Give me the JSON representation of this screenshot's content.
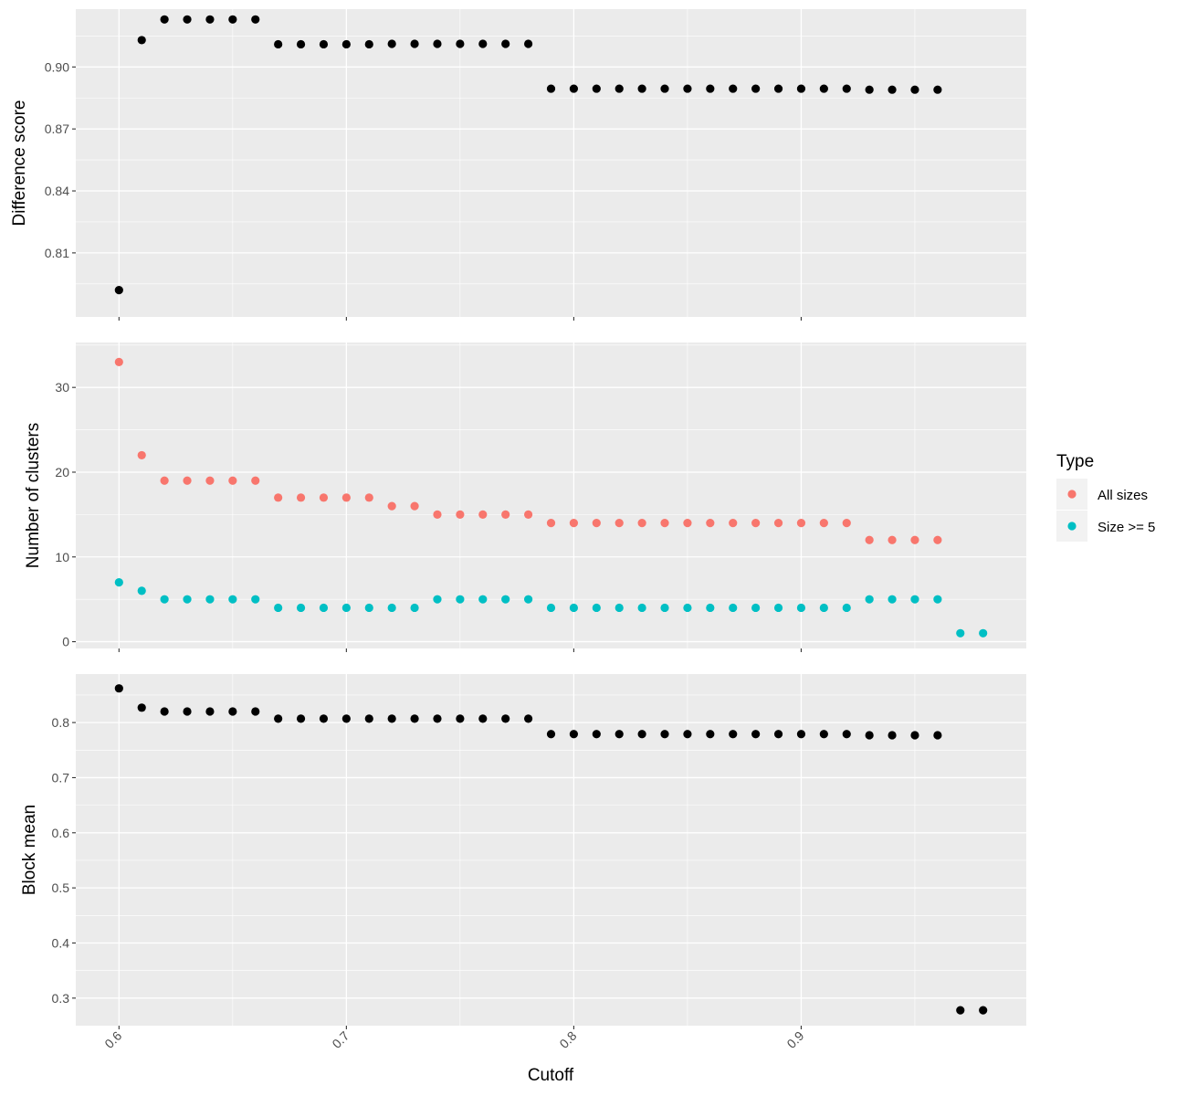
{
  "chart_data": {
    "type": "scatter",
    "x_label": "Cutoff",
    "x_ticks": [
      0.6,
      0.7,
      0.8,
      0.9
    ],
    "x_tick_labels": [
      "0.6",
      "0.7",
      "0.8",
      "0.9"
    ],
    "xlim": [
      0.581,
      0.999
    ],
    "grid": true,
    "panels": [
      {
        "ylabel": "Difference score",
        "ylim": [
          0.779,
          0.928
        ],
        "yticks": [
          0.81,
          0.84,
          0.87,
          0.9
        ],
        "ytick_labels": [
          "0.81",
          "0.84",
          "0.87",
          "0.90"
        ],
        "series": [
          {
            "color": "#000000",
            "x": [
              0.6,
              0.61,
              0.62,
              0.63,
              0.64,
              0.65,
              0.66,
              0.67,
              0.68,
              0.69,
              0.7,
              0.71,
              0.72,
              0.73,
              0.74,
              0.75,
              0.76,
              0.77,
              0.78,
              0.79,
              0.8,
              0.81,
              0.82,
              0.83,
              0.84,
              0.85,
              0.86,
              0.87,
              0.88,
              0.89,
              0.9,
              0.91,
              0.92,
              0.93,
              0.94,
              0.95,
              0.96
            ],
            "y": [
              0.792,
              0.913,
              0.923,
              0.923,
              0.923,
              0.923,
              0.923,
              0.911,
              0.911,
              0.911,
              0.911,
              0.911,
              0.9112,
              0.9112,
              0.9112,
              0.9112,
              0.9112,
              0.9112,
              0.9112,
              0.8895,
              0.8895,
              0.8895,
              0.8895,
              0.8895,
              0.8895,
              0.8895,
              0.8895,
              0.8895,
              0.8895,
              0.8895,
              0.8895,
              0.8895,
              0.8895,
              0.889,
              0.889,
              0.889,
              0.889
            ]
          }
        ]
      },
      {
        "ylabel": "Number of clusters",
        "ylim": [
          -0.8,
          35.3
        ],
        "yticks": [
          0,
          10,
          20,
          30
        ],
        "ytick_labels": [
          "0",
          "10",
          "20",
          "30"
        ],
        "series": [
          {
            "name": "All sizes",
            "color": "#F8766D",
            "x": [
              0.6,
              0.61,
              0.62,
              0.63,
              0.64,
              0.65,
              0.66,
              0.67,
              0.68,
              0.69,
              0.7,
              0.71,
              0.72,
              0.73,
              0.74,
              0.75,
              0.76,
              0.77,
              0.78,
              0.79,
              0.8,
              0.81,
              0.82,
              0.83,
              0.84,
              0.85,
              0.86,
              0.87,
              0.88,
              0.89,
              0.9,
              0.91,
              0.92,
              0.93,
              0.94,
              0.95,
              0.96
            ],
            "y": [
              33,
              22,
              19,
              19,
              19,
              19,
              19,
              17,
              17,
              17,
              17,
              17,
              16,
              16,
              15,
              15,
              15,
              15,
              15,
              14,
              14,
              14,
              14,
              14,
              14,
              14,
              14,
              14,
              14,
              14,
              14,
              14,
              14,
              12,
              12,
              12,
              12
            ]
          },
          {
            "name": "Size >= 5",
            "color": "#00BFC4",
            "x": [
              0.6,
              0.61,
              0.62,
              0.63,
              0.64,
              0.65,
              0.66,
              0.67,
              0.68,
              0.69,
              0.7,
              0.71,
              0.72,
              0.73,
              0.74,
              0.75,
              0.76,
              0.77,
              0.78,
              0.79,
              0.8,
              0.81,
              0.82,
              0.83,
              0.84,
              0.85,
              0.86,
              0.87,
              0.88,
              0.89,
              0.9,
              0.91,
              0.92,
              0.93,
              0.94,
              0.95,
              0.96,
              0.97,
              0.98
            ],
            "y": [
              7,
              6,
              5,
              5,
              5,
              5,
              5,
              4,
              4,
              4,
              4,
              4,
              4,
              4,
              5,
              5,
              5,
              5,
              5,
              4,
              4,
              4,
              4,
              4,
              4,
              4,
              4,
              4,
              4,
              4,
              4,
              4,
              4,
              5,
              5,
              5,
              5,
              1,
              1
            ]
          }
        ]
      },
      {
        "ylabel": "Block mean",
        "ylim": [
          0.25,
          0.888
        ],
        "yticks": [
          0.3,
          0.4,
          0.5,
          0.6,
          0.7,
          0.8
        ],
        "ytick_labels": [
          "0.3",
          "0.4",
          "0.5",
          "0.6",
          "0.7",
          "0.8"
        ],
        "series": [
          {
            "color": "#000000",
            "x": [
              0.6,
              0.61,
              0.62,
              0.63,
              0.64,
              0.65,
              0.66,
              0.67,
              0.68,
              0.69,
              0.7,
              0.71,
              0.72,
              0.73,
              0.74,
              0.75,
              0.76,
              0.77,
              0.78,
              0.79,
              0.8,
              0.81,
              0.82,
              0.83,
              0.84,
              0.85,
              0.86,
              0.87,
              0.88,
              0.89,
              0.9,
              0.91,
              0.92,
              0.93,
              0.94,
              0.95,
              0.96,
              0.97,
              0.98
            ],
            "y": [
              0.862,
              0.827,
              0.82,
              0.82,
              0.82,
              0.82,
              0.82,
              0.807,
              0.807,
              0.807,
              0.807,
              0.807,
              0.807,
              0.807,
              0.807,
              0.807,
              0.807,
              0.807,
              0.807,
              0.779,
              0.779,
              0.779,
              0.779,
              0.779,
              0.779,
              0.779,
              0.779,
              0.779,
              0.779,
              0.779,
              0.779,
              0.779,
              0.779,
              0.777,
              0.777,
              0.777,
              0.777,
              0.278,
              0.278
            ]
          }
        ]
      }
    ],
    "legend": {
      "title": "Type",
      "position": "right",
      "items": [
        {
          "label": "All sizes",
          "color": "#F8766D"
        },
        {
          "label": "Size >= 5",
          "color": "#00BFC4"
        }
      ]
    }
  }
}
